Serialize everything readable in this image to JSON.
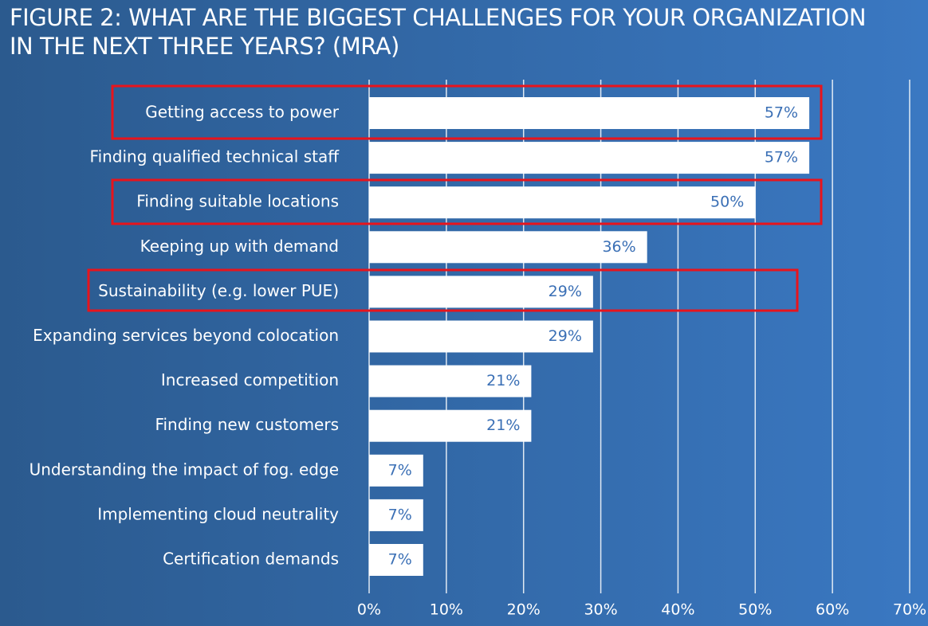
{
  "chart_data": {
    "type": "barh",
    "title": [
      "FIGURE 2: WHAT ARE THE BIGGEST CHALLENGES FOR YOUR ORGANIZATION",
      "IN THE NEXT THREE YEARS? (MRA)"
    ],
    "categories": [
      "Getting access to power",
      "Finding qualified technical staff",
      "Finding suitable locations",
      "Keeping up with demand",
      "Sustainability (e.g. lower PUE)",
      "Expanding services beyond colocation",
      "Increased competition",
      "Finding new customers",
      "Understanding the impact of fog. edge",
      "Implementing cloud neutrality",
      "Certification demands"
    ],
    "values": [
      57,
      57,
      50,
      36,
      29,
      29,
      21,
      21,
      7,
      7,
      7
    ],
    "value_labels": [
      "57%",
      "57%",
      "50%",
      "36%",
      "29%",
      "29%",
      "21%",
      "21%",
      "7%",
      "7%",
      "7%"
    ],
    "color": "#ffffff",
    "xlim": [
      0,
      70
    ],
    "xticks": [
      {
        "value": 0,
        "label": "0%"
      },
      {
        "value": 10,
        "label": "10%"
      },
      {
        "value": 20,
        "label": "20%"
      },
      {
        "value": 30,
        "label": "30%"
      },
      {
        "value": 40,
        "label": "40%"
      },
      {
        "value": 50,
        "label": "50%"
      },
      {
        "value": 60,
        "label": "60%"
      },
      {
        "value": 70,
        "label": "70%"
      }
    ],
    "grid": true
  }
}
